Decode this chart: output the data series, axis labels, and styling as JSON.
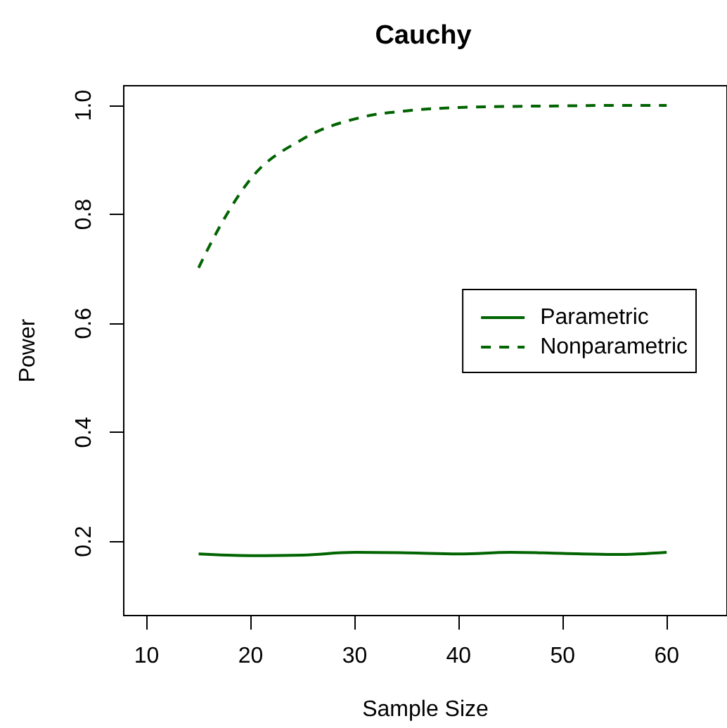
{
  "chart_data": {
    "type": "line",
    "title": "Cauchy",
    "xlabel": "Sample Size",
    "ylabel": "Power",
    "x": [
      15,
      20,
      25,
      30,
      35,
      40,
      45,
      50,
      55,
      60
    ],
    "series": [
      {
        "name": "Parametric",
        "color": "#006400",
        "line_style": "solid",
        "values": [
          0.177,
          0.174,
          0.175,
          0.18,
          0.179,
          0.177,
          0.18,
          0.178,
          0.176,
          0.18
        ]
      },
      {
        "name": "Nonparametric",
        "color": "#006400",
        "line_style": "dashed",
        "values": [
          0.702,
          0.865,
          0.938,
          0.975,
          0.99,
          0.996,
          0.998,
          0.999,
          1.0,
          1.0
        ]
      }
    ],
    "xlim": [
      7.8,
      65.8
    ],
    "ylim": [
      0.064,
      1.036
    ],
    "xticks": [
      10,
      20,
      30,
      40,
      50,
      60
    ],
    "yticks": [
      0.2,
      0.4,
      0.6,
      0.8,
      {
        "value": 1,
        "label": "1.0"
      }
    ],
    "grid": false,
    "legend": "right",
    "marker": "none"
  }
}
